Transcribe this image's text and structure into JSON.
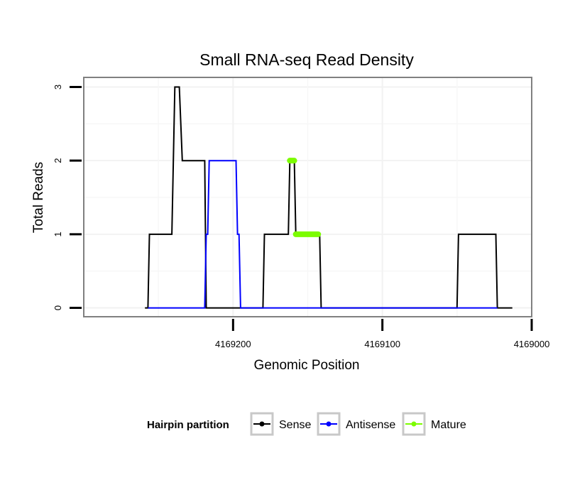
{
  "chart_data": {
    "type": "line",
    "title": "Small RNA-seq Read Density",
    "xlabel": "Genomic Position",
    "ylabel": "Total Reads",
    "x_reversed": true,
    "xlim": [
      4169300,
      4169000
    ],
    "ylim": [
      -0.12,
      3.13
    ],
    "x_ticks": [
      4169200,
      4169100,
      4169000
    ],
    "x_tick_labels": [
      "4169200",
      "4169100",
      "4169000"
    ],
    "y_ticks": [
      0,
      1,
      2,
      3
    ],
    "y_tick_labels": [
      "0",
      "1",
      "2",
      "3"
    ],
    "grid": true,
    "legend": {
      "title": "Hairpin partition",
      "position": "bottom",
      "entries": [
        "Sense",
        "Antisense",
        "Mature"
      ]
    },
    "series": [
      {
        "name": "Sense",
        "color": "#000000",
        "points": [
          [
            4169259,
            0
          ],
          [
            4169257,
            0
          ],
          [
            4169256,
            1
          ],
          [
            4169241,
            1
          ],
          [
            4169239,
            3
          ],
          [
            4169236,
            3
          ],
          [
            4169234,
            2
          ],
          [
            4169219,
            2
          ],
          [
            4169218,
            0
          ],
          [
            4169180,
            0
          ],
          [
            4169179,
            1
          ],
          [
            4169163,
            1
          ],
          [
            4169162,
            2
          ],
          [
            4169159,
            2
          ],
          [
            4169158,
            1
          ],
          [
            4169142,
            1
          ],
          [
            4169141,
            0
          ],
          [
            4169050,
            0
          ],
          [
            4169049,
            1
          ],
          [
            4169024,
            1
          ],
          [
            4169023,
            0
          ],
          [
            4169013,
            0
          ]
        ]
      },
      {
        "name": "Antisense",
        "color": "#0000ff",
        "points": [
          [
            4169257,
            0
          ],
          [
            4169219,
            0
          ],
          [
            4169218,
            1
          ],
          [
            4169217,
            1
          ],
          [
            4169216,
            2
          ],
          [
            4169198,
            2
          ],
          [
            4169197,
            1
          ],
          [
            4169196,
            1
          ],
          [
            4169195,
            0
          ],
          [
            4169180,
            0
          ],
          [
            4169142,
            0
          ],
          [
            4169050,
            0
          ],
          [
            4169023,
            0
          ]
        ]
      },
      {
        "name": "Mature",
        "color": "#7cfc00",
        "segments": [
          [
            [
              4169162,
              2
            ],
            [
              4169159,
              2
            ]
          ],
          [
            [
              4169158,
              1
            ],
            [
              4169143,
              1
            ]
          ]
        ]
      }
    ]
  }
}
